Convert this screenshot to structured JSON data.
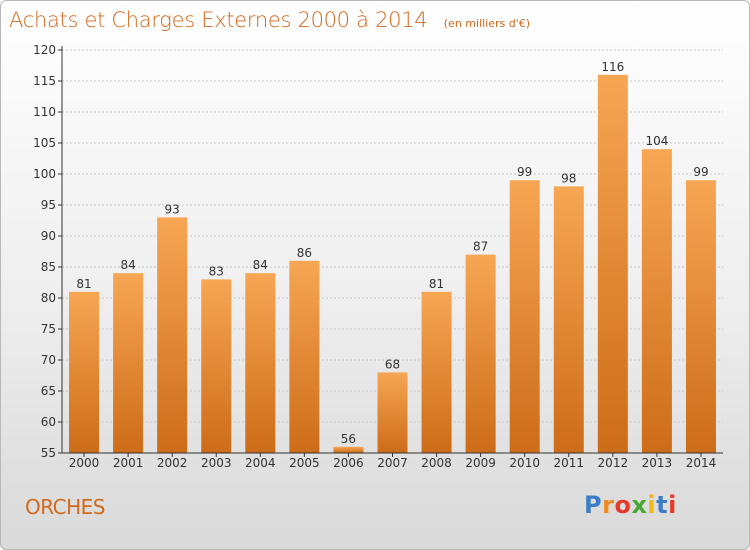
{
  "header": {
    "title": "Achats et Charges Externes 2000 à 2014",
    "unit": "(en milliers d'€)"
  },
  "footer": {
    "place": "ORCHES",
    "logo_text": "Proxiti",
    "logo_colors": [
      "#3a7dc9",
      "#f08a1c",
      "#e63a2a",
      "#4aa832",
      "#f0b81c",
      "#3a7dc9",
      "#e63a2a"
    ]
  },
  "colors": {
    "bar_light": "#f7a654",
    "bar_dark": "#cd6c18",
    "axis": "#333333",
    "grid": "#c8c8c8"
  },
  "chart_data": {
    "type": "bar",
    "title": "Achats et Charges Externes 2000 à 2014",
    "categories": [
      "2000",
      "2001",
      "2002",
      "2003",
      "2004",
      "2005",
      "2006",
      "2007",
      "2008",
      "2009",
      "2010",
      "2011",
      "2012",
      "2013",
      "2014"
    ],
    "values": [
      81,
      84,
      93,
      83,
      84,
      86,
      56,
      68,
      81,
      87,
      99,
      98,
      116,
      104,
      99
    ],
    "ylim": [
      55,
      120
    ],
    "yticks": [
      55,
      60,
      65,
      70,
      75,
      80,
      85,
      90,
      95,
      100,
      105,
      110,
      115,
      120
    ],
    "grid": true,
    "xlabel": "",
    "ylabel": ""
  }
}
